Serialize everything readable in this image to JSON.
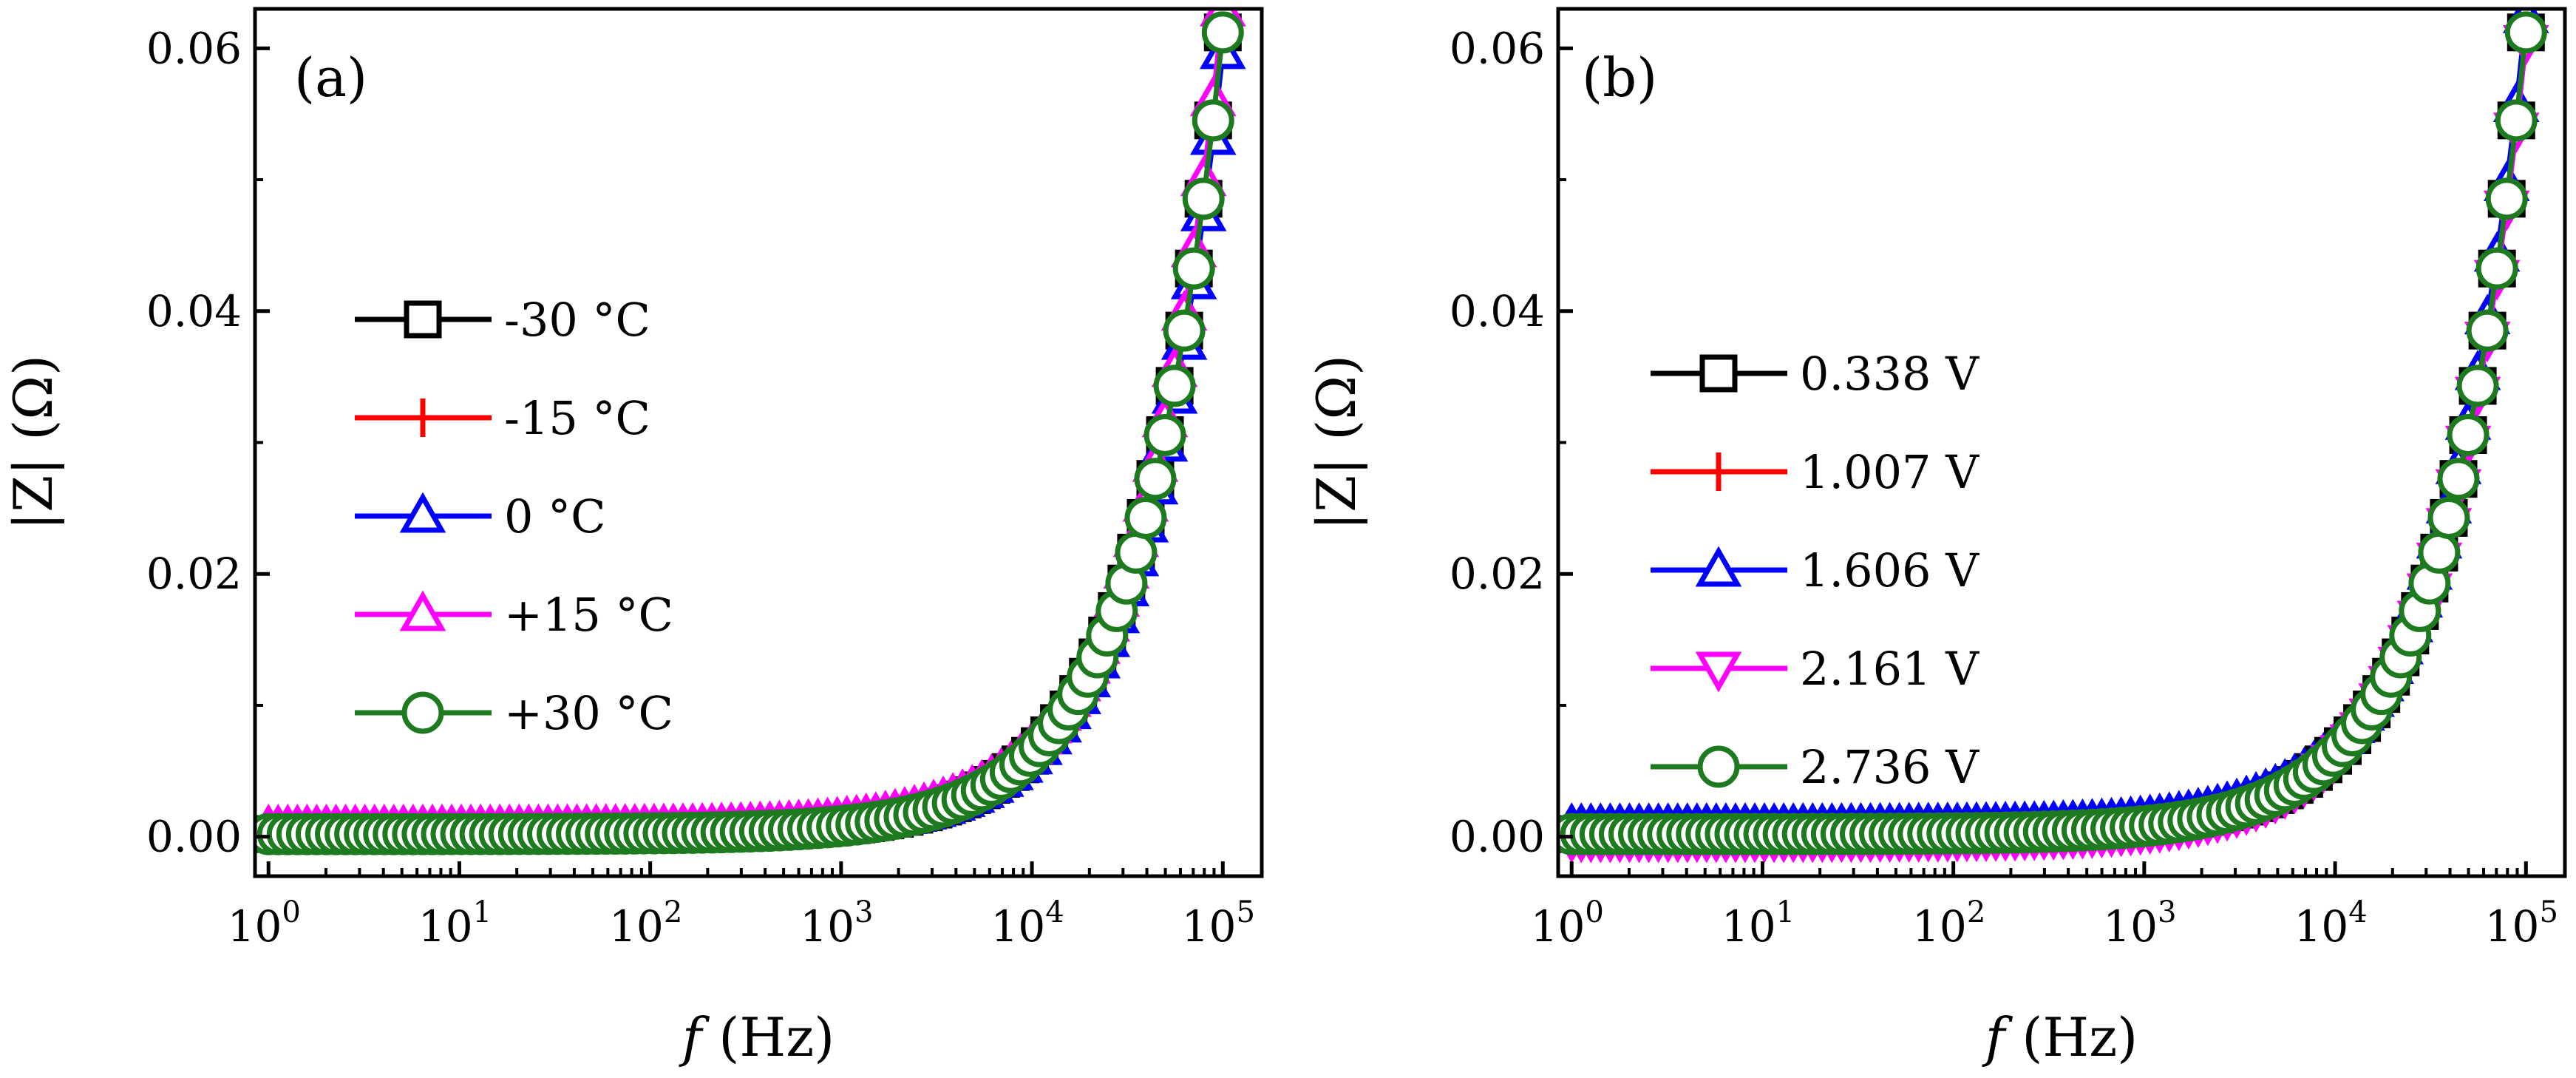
{
  "chart_data": [
    {
      "type": "line",
      "panel_label": "(a)",
      "xscale": "log",
      "xlabel": {
        "italic": "f",
        "unit": "(Hz)"
      },
      "ylabel": "|Z| (Ω)",
      "xlim": [
        0.85,
        160000
      ],
      "ylim": [
        -0.003,
        0.063
      ],
      "xticks": [
        {
          "value": 1,
          "base": "10",
          "exp": "0"
        },
        {
          "value": 10,
          "base": "10",
          "exp": "1"
        },
        {
          "value": 100,
          "base": "10",
          "exp": "2"
        },
        {
          "value": 1000,
          "base": "10",
          "exp": "3"
        },
        {
          "value": 10000,
          "base": "10",
          "exp": "4"
        },
        {
          "value": 100000,
          "base": "10",
          "exp": "5"
        }
      ],
      "yticks": [
        {
          "value": 0.0,
          "label": "0.00"
        },
        {
          "value": 0.02,
          "label": "0.02"
        },
        {
          "value": 0.04,
          "label": "0.04"
        },
        {
          "value": 0.06,
          "label": "0.06"
        }
      ],
      "legend_position": "center-left",
      "series": [
        {
          "name": "-30 °C",
          "color": "#000000",
          "marker": "square",
          "offset": 0.0,
          "scale": 1.0
        },
        {
          "name": "-15 °C",
          "color": "#ff0000",
          "marker": "plus",
          "offset": 0.0,
          "scale": 1.005
        },
        {
          "name": "0 °C",
          "color": "#0000ff",
          "marker": "triangle-up",
          "offset": 0.0,
          "scale": 0.975
        },
        {
          "name": "+15 °C",
          "color": "#ff00ff",
          "marker": "triangle-up",
          "offset": 0.0005,
          "scale": 1.02
        },
        {
          "name": "+30 °C",
          "color": "#1e7a1e",
          "marker": "circle",
          "offset": 0.0,
          "scale": 1.0
        }
      ],
      "model": {
        "R0": 0.0002,
        "L_coef": 9.71e-08,
        "freq_range": [
          1,
          100000
        ],
        "points": 100
      }
    },
    {
      "type": "line",
      "panel_label": "(b)",
      "xscale": "log",
      "xlabel": {
        "italic": "f",
        "unit": "(Hz)"
      },
      "ylabel": "|Z| (Ω)",
      "xlim": [
        0.85,
        160000
      ],
      "ylim": [
        -0.003,
        0.063
      ],
      "xticks": [
        {
          "value": 1,
          "base": "10",
          "exp": "0"
        },
        {
          "value": 10,
          "base": "10",
          "exp": "1"
        },
        {
          "value": 100,
          "base": "10",
          "exp": "2"
        },
        {
          "value": 1000,
          "base": "10",
          "exp": "3"
        },
        {
          "value": 10000,
          "base": "10",
          "exp": "4"
        },
        {
          "value": 100000,
          "base": "10",
          "exp": "5"
        }
      ],
      "yticks": [
        {
          "value": 0.0,
          "label": "0.00"
        },
        {
          "value": 0.02,
          "label": "0.02"
        },
        {
          "value": 0.04,
          "label": "0.04"
        },
        {
          "value": 0.06,
          "label": "0.06"
        }
      ],
      "legend_position": "center-left",
      "series": [
        {
          "name": "0.338 V",
          "color": "#000000",
          "marker": "square",
          "offset": 0.0,
          "scale": 1.0
        },
        {
          "name": "1.007 V",
          "color": "#ff0000",
          "marker": "plus",
          "offset": 0.0,
          "scale": 1.0
        },
        {
          "name": "1.606 V",
          "color": "#0000ff",
          "marker": "triangle-up",
          "offset": 0.0006,
          "scale": 1.01
        },
        {
          "name": "2.161 V",
          "color": "#ff00ff",
          "marker": "triangle-down",
          "offset": -0.0004,
          "scale": 0.995
        },
        {
          "name": "2.736 V",
          "color": "#1e7a1e",
          "marker": "circle",
          "offset": 0.0,
          "scale": 1.0
        }
      ],
      "model": {
        "R0": 0.0002,
        "L_coef": 9.71e-08,
        "freq_range": [
          1,
          100000
        ],
        "points": 100
      }
    }
  ]
}
